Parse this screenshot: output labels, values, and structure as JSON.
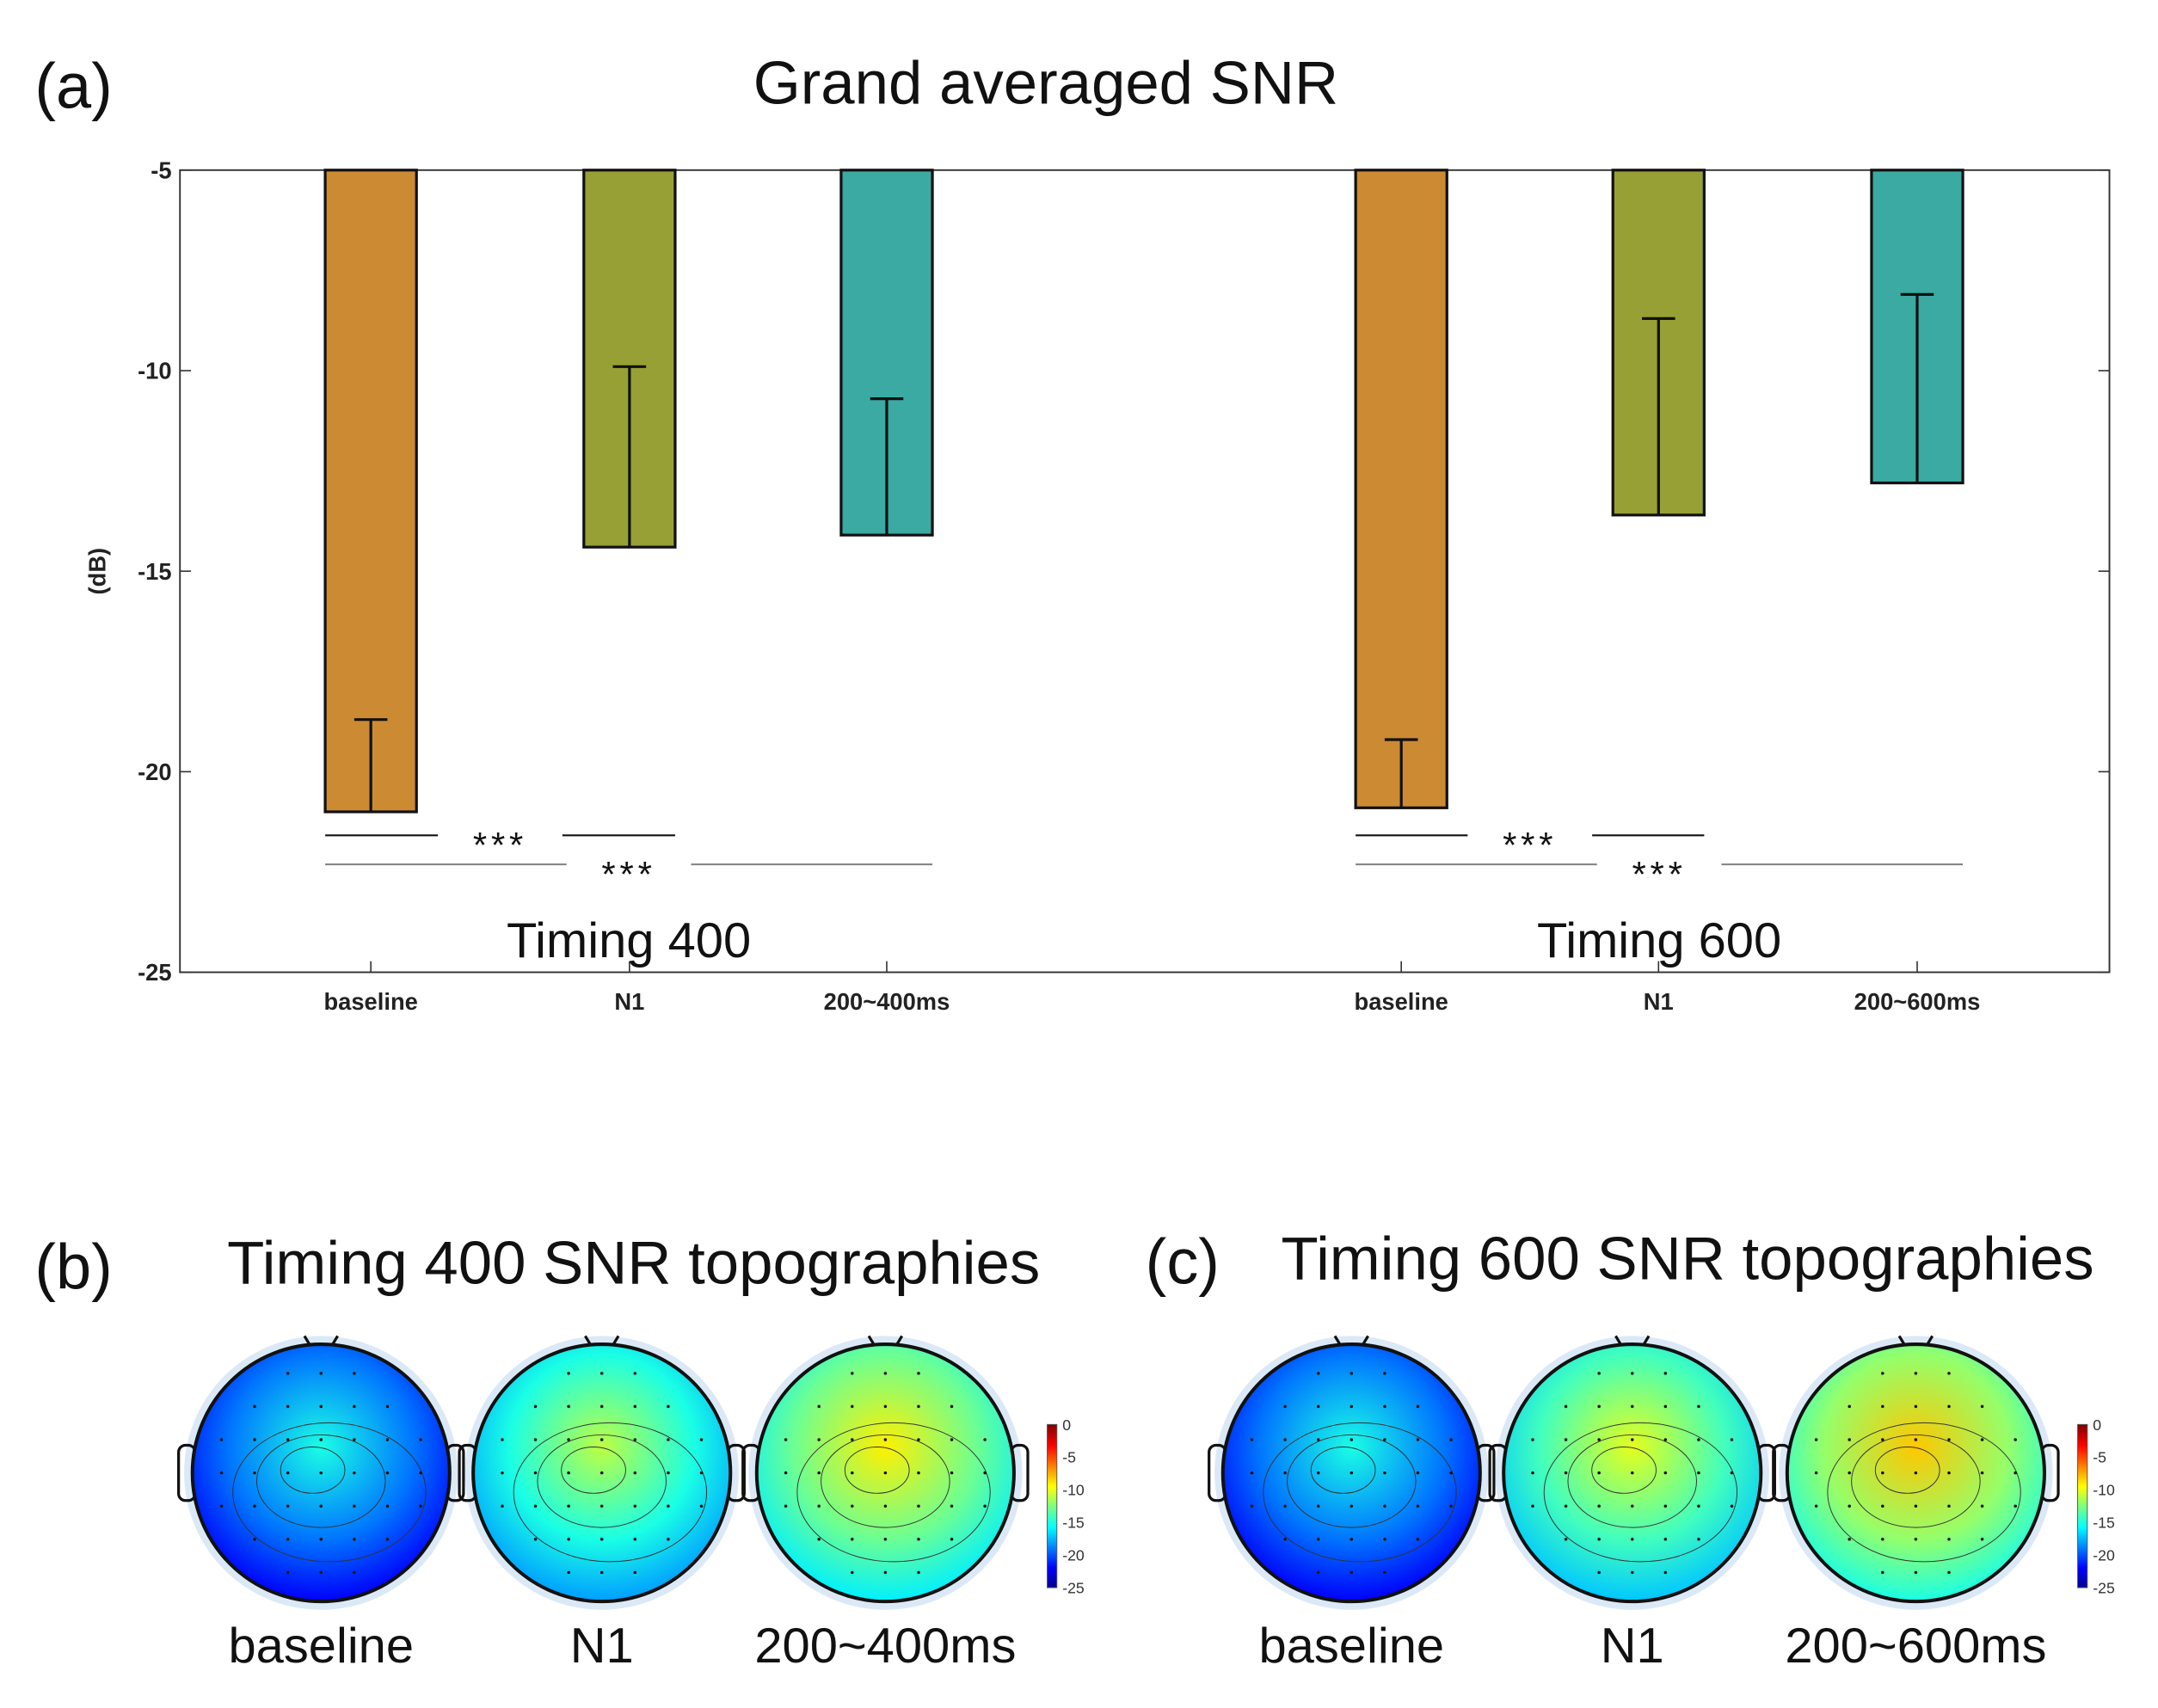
{
  "panels": {
    "a": {
      "label": "(a)",
      "title": "Grand averaged SNR"
    },
    "b": {
      "label": "(b)",
      "title": "Timing 400 SNR topographies"
    },
    "c": {
      "label": "(c)",
      "title": "Timing 600 SNR topographies"
    }
  },
  "chart_data": [
    {
      "type": "bar",
      "title": "Grand averaged SNR",
      "ylabel": "(dB)",
      "xlabel": "",
      "ylim": [
        -25,
        -5
      ],
      "yticks": [
        "-5",
        "-10",
        "-15",
        "-20",
        "-25"
      ],
      "groups": [
        {
          "name": "Timing 400",
          "categories": [
            "baseline",
            "N1",
            "200~400ms"
          ],
          "values": [
            -21.0,
            -14.4,
            -14.1
          ],
          "error_upper": [
            -18.7,
            -9.9,
            -10.7
          ]
        },
        {
          "name": "Timing 600",
          "categories": [
            "baseline",
            "N1",
            "200~600ms"
          ],
          "values": [
            -20.9,
            -13.6,
            -12.8
          ],
          "error_upper": [
            -19.2,
            -8.7,
            -8.1
          ]
        }
      ],
      "colors": [
        "#CC8B33",
        "#97A035",
        "#3AAAA2"
      ],
      "significance": [
        {
          "group": "Timing 400",
          "from": "baseline",
          "to": "N1",
          "label": "***"
        },
        {
          "group": "Timing 400",
          "from": "baseline",
          "to": "200~400ms",
          "label": "***"
        },
        {
          "group": "Timing 600",
          "from": "baseline",
          "to": "N1",
          "label": "***"
        },
        {
          "group": "Timing 600",
          "from": "baseline",
          "to": "200~600ms",
          "label": "***"
        }
      ]
    },
    {
      "type": "heatmap",
      "title": "Timing 400 SNR topographies",
      "maps": [
        {
          "label": "baseline",
          "mean_db": -19
        },
        {
          "label": "N1",
          "mean_db": -15
        },
        {
          "label": "200~400ms",
          "mean_db": -13
        }
      ],
      "colorbar": {
        "range": [
          -25,
          0
        ],
        "ticks": [
          "0",
          "-5",
          "-10",
          "-15",
          "-20",
          "-25"
        ]
      }
    },
    {
      "type": "heatmap",
      "title": "Timing 600 SNR topographies",
      "maps": [
        {
          "label": "baseline",
          "mean_db": -19
        },
        {
          "label": "N1",
          "mean_db": -14
        },
        {
          "label": "200~600ms",
          "mean_db": -12
        }
      ],
      "colorbar": {
        "range": [
          -25,
          0
        ],
        "ticks": [
          "0",
          "-5",
          "-10",
          "-15",
          "-20",
          "-25"
        ]
      }
    }
  ]
}
